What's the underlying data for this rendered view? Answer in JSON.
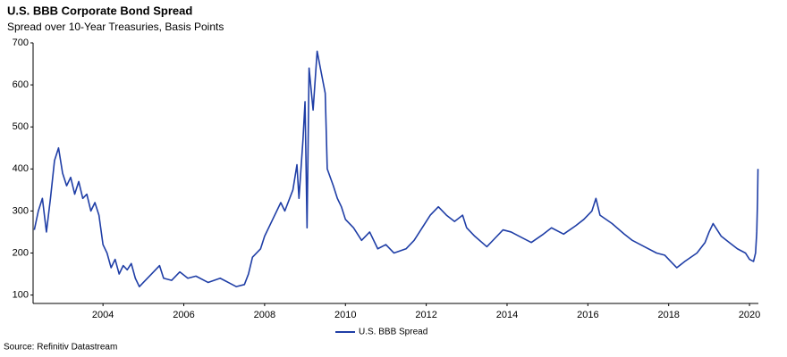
{
  "chart_data": {
    "type": "line",
    "title": "U.S. BBB Corporate Bond Spread",
    "subtitle": "Spread over 10-Year Treasuries, Basis Points",
    "source": "Source: Refinitiv Datastream",
    "x": [
      2002.3,
      2002.4,
      2002.5,
      2002.6,
      2002.7,
      2002.8,
      2002.9,
      2003.0,
      2003.1,
      2003.2,
      2003.3,
      2003.4,
      2003.5,
      2003.6,
      2003.7,
      2003.8,
      2003.9,
      2004.0,
      2004.1,
      2004.2,
      2004.3,
      2004.4,
      2004.5,
      2004.6,
      2004.7,
      2004.8,
      2004.9,
      2005.0,
      2005.2,
      2005.4,
      2005.5,
      2005.7,
      2005.9,
      2006.1,
      2006.3,
      2006.6,
      2006.9,
      2007.1,
      2007.3,
      2007.5,
      2007.6,
      2007.7,
      2007.9,
      2008.0,
      2008.2,
      2008.4,
      2008.5,
      2008.7,
      2008.8,
      2008.85,
      2008.95,
      2009.0,
      2009.05,
      2009.1,
      2009.2,
      2009.3,
      2009.4,
      2009.5,
      2009.55,
      2009.7,
      2009.8,
      2009.9,
      2010.0,
      2010.2,
      2010.4,
      2010.6,
      2010.8,
      2011.0,
      2011.2,
      2011.5,
      2011.7,
      2011.9,
      2012.1,
      2012.3,
      2012.5,
      2012.7,
      2012.9,
      2013.0,
      2013.2,
      2013.5,
      2013.7,
      2013.9,
      2014.1,
      2014.3,
      2014.6,
      2014.9,
      2015.1,
      2015.4,
      2015.7,
      2015.9,
      2016.1,
      2016.2,
      2016.3,
      2016.6,
      2016.9,
      2017.1,
      2017.4,
      2017.7,
      2017.9,
      2018.1,
      2018.2,
      2018.4,
      2018.7,
      2018.9,
      2019.0,
      2019.1,
      2019.3,
      2019.5,
      2019.7,
      2019.9,
      2020.0,
      2020.1,
      2020.15,
      2020.18,
      2020.2,
      2020.21
    ],
    "series": [
      {
        "name": "U.S. BBB Spread",
        "color": "#1f3ea6",
        "values": [
          255,
          300,
          330,
          250,
          330,
          420,
          450,
          390,
          360,
          380,
          340,
          370,
          330,
          340,
          300,
          320,
          290,
          220,
          200,
          165,
          185,
          150,
          170,
          160,
          175,
          140,
          120,
          130,
          150,
          170,
          140,
          135,
          155,
          140,
          145,
          130,
          140,
          130,
          120,
          125,
          150,
          190,
          210,
          240,
          280,
          320,
          300,
          350,
          410,
          330,
          470,
          560,
          260,
          640,
          540,
          680,
          630,
          580,
          400,
          360,
          330,
          310,
          280,
          260,
          230,
          250,
          210,
          220,
          200,
          210,
          230,
          260,
          290,
          310,
          290,
          275,
          290,
          260,
          240,
          215,
          235,
          255,
          250,
          240,
          225,
          245,
          260,
          245,
          265,
          280,
          300,
          330,
          290,
          270,
          245,
          230,
          215,
          200,
          195,
          175,
          165,
          180,
          200,
          225,
          250,
          270,
          240,
          225,
          210,
          200,
          185,
          180,
          200,
          250,
          330,
          400
        ]
      }
    ],
    "xlim": [
      2002.27,
      2020.22
    ],
    "xticks": [
      2004,
      2006,
      2008,
      2010,
      2012,
      2014,
      2016,
      2018,
      2020
    ],
    "ylim": [
      80,
      700
    ],
    "yticks": [
      100,
      200,
      300,
      400,
      500,
      600,
      700
    ]
  }
}
